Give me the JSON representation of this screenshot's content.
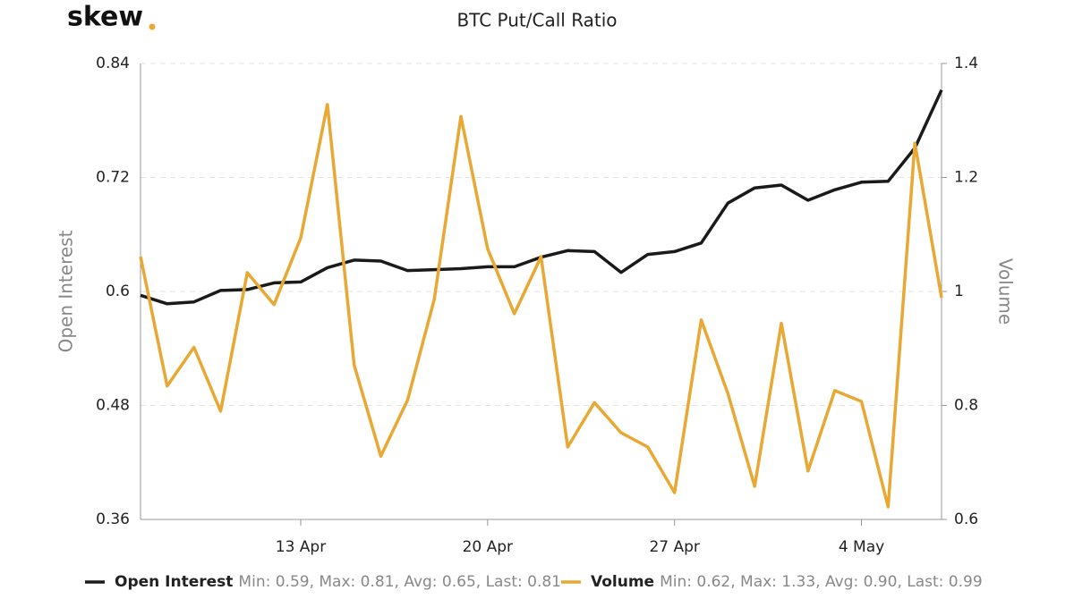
{
  "chart_data": {
    "type": "line",
    "logo": "skew",
    "title": "BTC Put/Call Ratio",
    "ylabel": "Open Interest",
    "y2label": "Volume",
    "categories": [
      null,
      null,
      null,
      null,
      null,
      null,
      "13 Apr",
      null,
      null,
      null,
      null,
      null,
      null,
      "20 Apr",
      null,
      null,
      null,
      null,
      null,
      null,
      "27 Apr",
      null,
      null,
      null,
      null,
      null,
      null,
      "4 May",
      null,
      null,
      null
    ],
    "series": [
      {
        "name": "Open Interest",
        "color": "#1a1a1a",
        "axis": "y",
        "stats": "Min: 0.59, Max: 0.81, Avg: 0.65, Last: 0.81",
        "values": [
          0.596,
          0.587,
          0.589,
          0.601,
          0.602,
          0.609,
          0.61,
          0.625,
          0.633,
          0.632,
          0.622,
          0.623,
          0.624,
          0.626,
          0.626,
          0.636,
          0.643,
          0.642,
          0.62,
          0.639,
          0.642,
          0.651,
          0.693,
          0.709,
          0.712,
          0.696,
          0.707,
          0.715,
          0.716,
          0.751,
          0.812
        ]
      },
      {
        "name": "Volume",
        "color": "#e8a833",
        "axis": "y2",
        "stats": "Min: 0.62, Max: 1.33, Avg: 0.90, Last: 0.99",
        "values": [
          1.061,
          0.834,
          0.902,
          0.79,
          1.033,
          0.977,
          1.094,
          1.328,
          0.871,
          0.711,
          0.809,
          0.986,
          1.307,
          1.075,
          0.961,
          1.061,
          0.727,
          0.805,
          0.752,
          0.727,
          0.647,
          0.95,
          0.821,
          0.658,
          0.944,
          0.685,
          0.826,
          0.807,
          0.622,
          1.26,
          0.989
        ]
      }
    ],
    "ylim": [
      0.36,
      0.84
    ],
    "yticks": [
      0.36,
      0.48,
      0.6,
      0.72,
      0.84
    ],
    "y2lim": [
      0.6,
      1.4
    ],
    "y2ticks": [
      0.6,
      0.8,
      1,
      1.2,
      1.4
    ],
    "grid": true,
    "legend": "bottom"
  }
}
